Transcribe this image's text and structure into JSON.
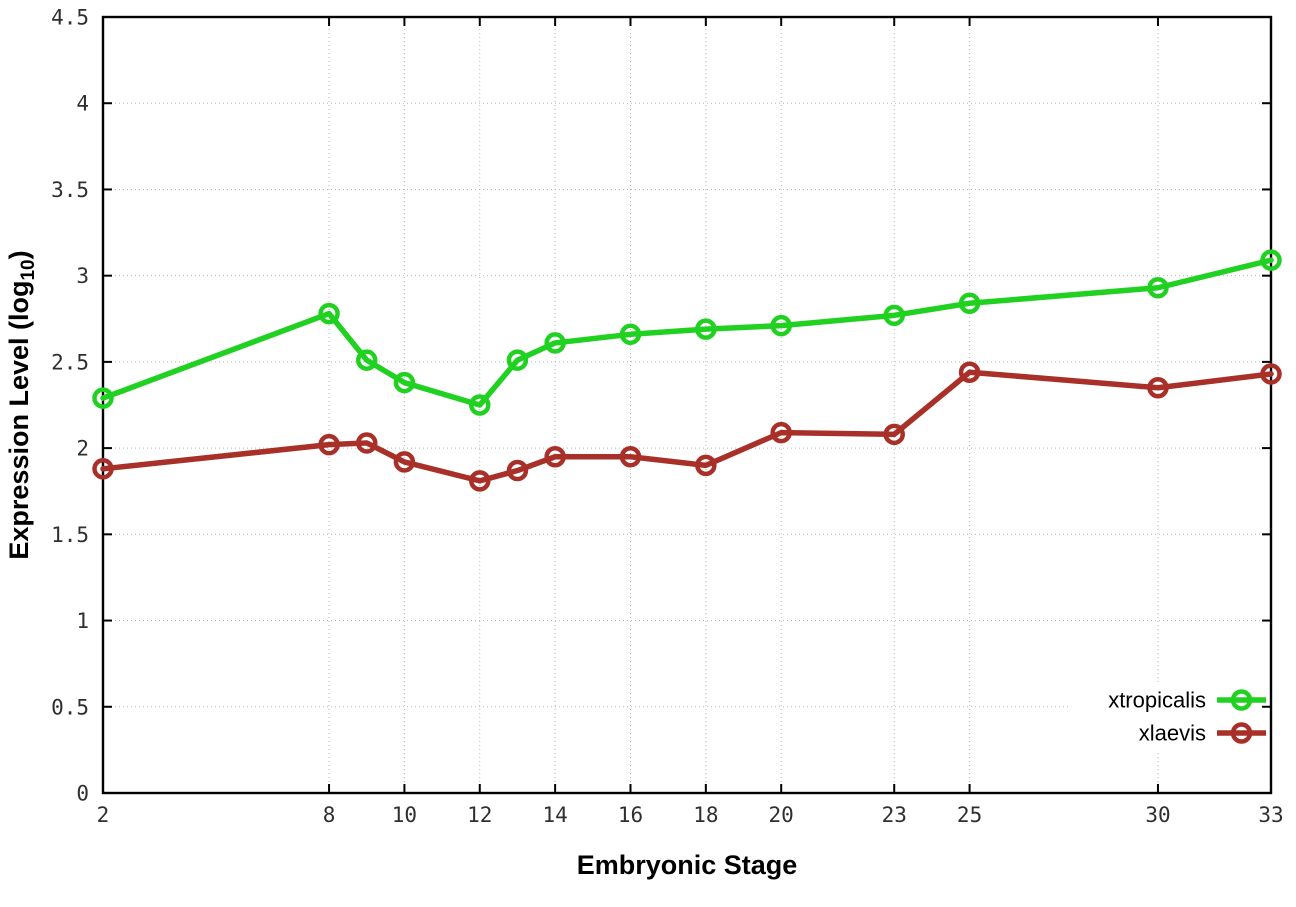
{
  "chart_data": {
    "type": "line",
    "title": "",
    "xlabel": "Embryonic Stage",
    "ylabel": "Expression Level (log10)",
    "ylabel_parts": {
      "prefix": "Expression Level (log",
      "subscript": "10",
      "suffix": ")"
    },
    "xlim": [
      2,
      33
    ],
    "ylim": [
      0,
      4.5
    ],
    "grid": true,
    "grid_style": "dotted",
    "legend_position": "bottom-right-inside",
    "marker": "open-circle",
    "xticks": [
      2,
      8,
      10,
      12,
      14,
      16,
      18,
      20,
      23,
      25,
      30,
      33
    ],
    "xtick_labels": [
      "2",
      "8",
      "10",
      "12",
      "14",
      "16",
      "18",
      "20",
      "23",
      "25",
      "30",
      "33"
    ],
    "yticks": [
      0,
      0.5,
      1,
      1.5,
      2,
      2.5,
      3,
      3.5,
      4,
      4.5
    ],
    "ytick_labels": [
      "0",
      "0.5",
      "1",
      "1.5",
      "2",
      "2.5",
      "3",
      "3.5",
      "4",
      "4.5"
    ],
    "x": [
      2,
      8,
      9,
      10,
      12,
      13,
      14,
      16,
      18,
      20,
      23,
      25,
      30,
      33
    ],
    "series": [
      {
        "name": "xtropicalis",
        "color": "#21d121",
        "values": [
          2.29,
          2.78,
          2.51,
          2.38,
          2.25,
          2.51,
          2.61,
          2.66,
          2.69,
          2.71,
          2.77,
          2.84,
          2.93,
          3.09
        ]
      },
      {
        "name": "xlaevis",
        "color": "#a93028",
        "values": [
          1.88,
          2.02,
          2.03,
          1.92,
          1.81,
          1.87,
          1.95,
          1.95,
          1.9,
          2.09,
          2.08,
          2.44,
          2.35,
          2.43
        ]
      }
    ],
    "colors": {
      "background": "#ffffff",
      "axis": "#000000",
      "grid": "#b8b8b8",
      "tick_text": "#2f2f2f"
    }
  }
}
